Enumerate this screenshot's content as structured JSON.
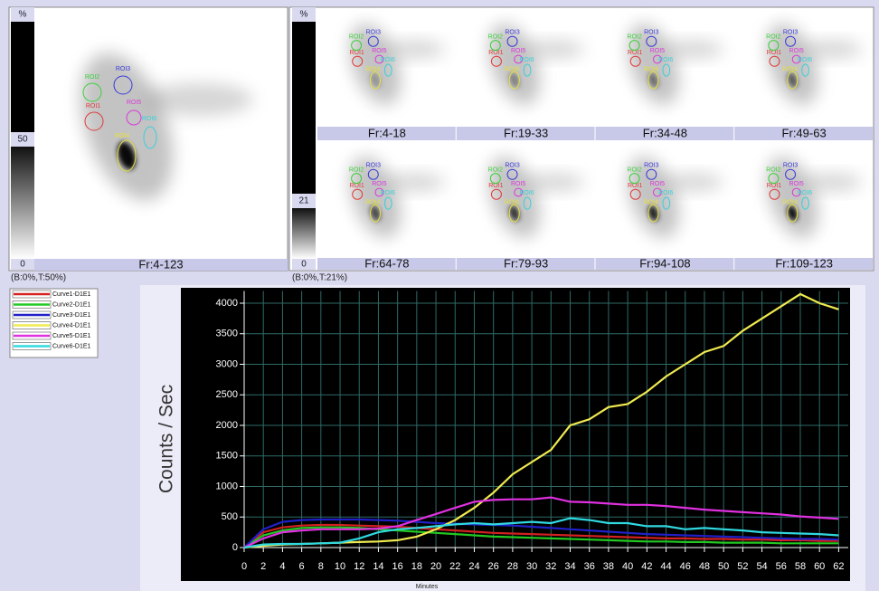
{
  "left_panel": {
    "colorbar_unit": "%",
    "colorbar_mid": 50,
    "colorbar_min": 0,
    "frame_label": "Fr:4-123",
    "window_label": "(B:0%,T:50%)"
  },
  "right_panel": {
    "colorbar_unit": "%",
    "colorbar_mid": 21,
    "colorbar_min": 0,
    "frame_labels": [
      "Fr:4-18",
      "Fr:19-33",
      "Fr:34-48",
      "Fr:49-63",
      "Fr:64-78",
      "Fr:79-93",
      "Fr:94-108",
      "Fr:109-123"
    ],
    "window_label": "(B:0%,T:21%)"
  },
  "rois": [
    {
      "label": "ROI1",
      "color": "#e03a3a"
    },
    {
      "label": "ROI2",
      "color": "#3ccf3c"
    },
    {
      "label": "ROI3",
      "color": "#3a3ad8"
    },
    {
      "label": "ROI4",
      "color": "#e6e03a"
    },
    {
      "label": "ROI5",
      "color": "#d83ad8"
    },
    {
      "label": "ROI6",
      "color": "#3ad0d8"
    }
  ],
  "chart_data": {
    "type": "line",
    "y_label": "Counts / Sec",
    "x_label": "Minutes",
    "x": [
      0,
      2,
      4,
      6,
      8,
      10,
      12,
      14,
      16,
      18,
      20,
      22,
      24,
      26,
      28,
      30,
      32,
      34,
      36,
      38,
      40,
      42,
      44,
      46,
      48,
      50,
      52,
      54,
      56,
      58,
      60,
      62
    ],
    "xlim": [
      0,
      63
    ],
    "ylim": [
      0,
      4200
    ],
    "xticks": [
      0,
      2,
      4,
      6,
      8,
      10,
      12,
      14,
      16,
      18,
      20,
      22,
      24,
      26,
      28,
      30,
      32,
      34,
      36,
      38,
      40,
      42,
      44,
      46,
      48,
      50,
      52,
      54,
      56,
      58,
      60,
      62
    ],
    "yticks": [
      0,
      500,
      1000,
      1500,
      2000,
      2500,
      3000,
      3500,
      4000
    ],
    "grid": true,
    "series": [
      {
        "name": "Curve1-D1E1",
        "color": "#d42020",
        "values": [
          0,
          250,
          330,
          360,
          370,
          370,
          360,
          350,
          340,
          320,
          300,
          280,
          260,
          240,
          230,
          220,
          210,
          200,
          190,
          180,
          170,
          160,
          150,
          150,
          140,
          140,
          130,
          130,
          120,
          120,
          110,
          110
        ]
      },
      {
        "name": "Curve2-D1E1",
        "color": "#22c822",
        "values": [
          0,
          200,
          280,
          320,
          330,
          330,
          320,
          300,
          280,
          260,
          240,
          220,
          200,
          180,
          170,
          160,
          150,
          140,
          130,
          120,
          110,
          100,
          100,
          90,
          90,
          80,
          80,
          80,
          70,
          70,
          70,
          70
        ]
      },
      {
        "name": "Curve3-D1E1",
        "color": "#2020c8",
        "values": [
          0,
          300,
          420,
          450,
          460,
          460,
          460,
          450,
          440,
          420,
          400,
          390,
          380,
          370,
          360,
          340,
          320,
          300,
          280,
          260,
          240,
          220,
          210,
          200,
          190,
          180,
          170,
          160,
          150,
          140,
          140,
          130
        ]
      },
      {
        "name": "Curve4-D1E1",
        "color": "#f0ea50",
        "values": [
          0,
          30,
          50,
          60,
          70,
          80,
          90,
          100,
          120,
          180,
          300,
          450,
          650,
          900,
          1200,
          1400,
          1600,
          2000,
          2100,
          2300,
          2350,
          2550,
          2800,
          3000,
          3200,
          3300,
          3550,
          3750,
          3950,
          4150,
          4000,
          3900
        ]
      },
      {
        "name": "Curve5-D1E1",
        "color": "#e030e0",
        "values": [
          0,
          150,
          250,
          280,
          300,
          300,
          300,
          310,
          350,
          450,
          550,
          650,
          750,
          780,
          790,
          790,
          820,
          750,
          740,
          720,
          700,
          700,
          680,
          650,
          620,
          600,
          580,
          560,
          540,
          510,
          490,
          470
        ]
      },
      {
        "name": "Curve6-D1E1",
        "color": "#30d8e0",
        "values": [
          0,
          50,
          60,
          60,
          70,
          80,
          150,
          250,
          300,
          320,
          350,
          380,
          400,
          380,
          400,
          420,
          400,
          480,
          450,
          400,
          400,
          350,
          350,
          300,
          320,
          300,
          280,
          250,
          240,
          230,
          220,
          200
        ]
      }
    ]
  }
}
